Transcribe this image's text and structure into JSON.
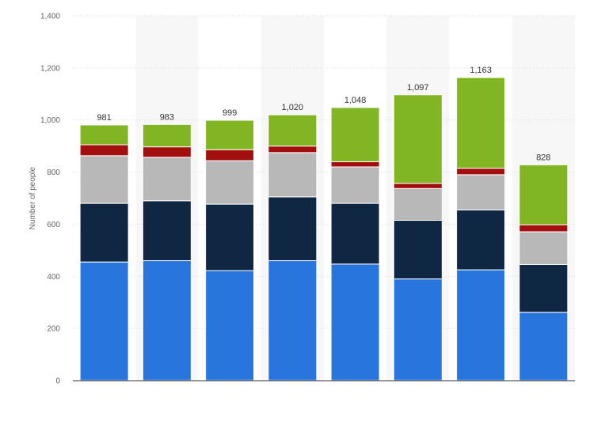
{
  "chart_data": {
    "type": "bar",
    "stacked": true,
    "title": "",
    "xlabel": "",
    "ylabel": "Number of people",
    "ylim": [
      0,
      1400
    ],
    "yticks": [
      0,
      200,
      400,
      600,
      800,
      1000,
      1200,
      1400
    ],
    "ytick_labels": [
      "0",
      "200",
      "400",
      "600",
      "800",
      "1,000",
      "1,200",
      "1,400"
    ],
    "grid": true,
    "categories": [
      "",
      "",
      "",
      "",
      "",
      "",
      "",
      ""
    ],
    "totals": [
      981,
      983,
      999,
      1020,
      1048,
      1097,
      1163,
      828
    ],
    "total_labels": [
      "981",
      "983",
      "999",
      "1,020",
      "1,048",
      "1,097",
      "1,163",
      "828"
    ],
    "series": [
      {
        "color": "#2876dd",
        "values": [
          455,
          460,
          422,
          460,
          447,
          390,
          425,
          262
        ]
      },
      {
        "color": "#0f2742",
        "values": [
          225,
          230,
          255,
          245,
          233,
          225,
          230,
          183
        ]
      },
      {
        "color": "#b8b8b8",
        "values": [
          183,
          167,
          167,
          170,
          140,
          122,
          135,
          126
        ]
      },
      {
        "color": "#a30f0f",
        "values": [
          42,
          40,
          42,
          25,
          20,
          20,
          25,
          27
        ]
      },
      {
        "color": "#82b523",
        "values": [
          76,
          86,
          113,
          120,
          208,
          340,
          348,
          230
        ]
      }
    ]
  }
}
